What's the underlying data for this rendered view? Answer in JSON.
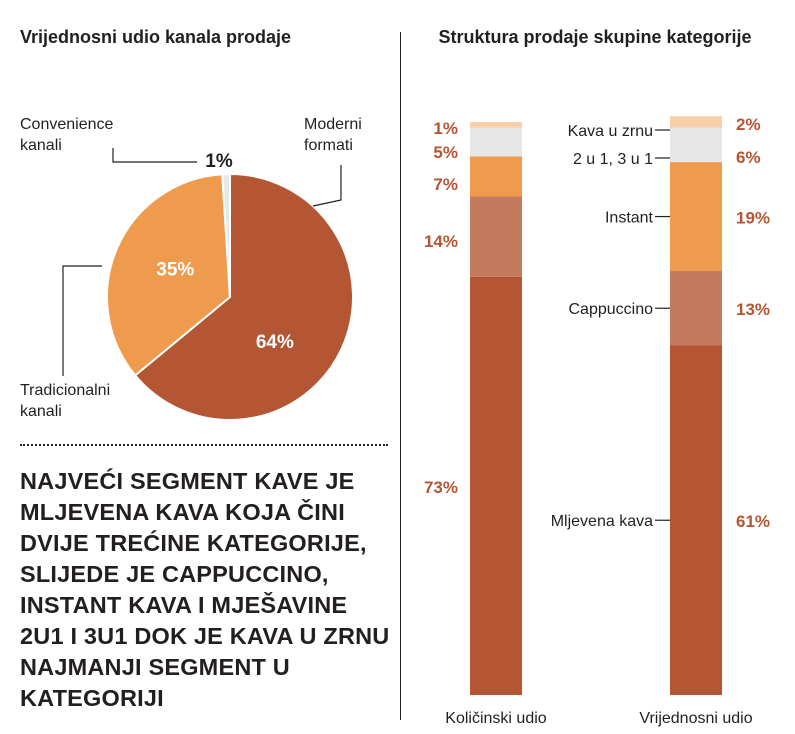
{
  "colors": {
    "mljevena": "#b45533",
    "cappuccino": "#c67a5d",
    "instant": "#ef9b4d",
    "mix": "#e7e7e8",
    "zrno": "#f8cfa8",
    "value_label": "#b45533",
    "text": "#231f20"
  },
  "left_title": "Vrijednosni udio kanala prodaje",
  "right_title": "Struktura prodaje skupine kategorije",
  "headline": "NAJVEĆI SEGMENT KAVE JE MLJEVENA KAVA KOJA ČINI DVIJE TREĆINE KATEGORIJE, SLIJEDE JE CAPPUCCINO, INSTANT KAVA I MJEŠAVINE 2U1 I 3U1 DOK JE KAVA U ZRNU NAJMANJI SEGMENT U KATEGORIJI",
  "chart_data": [
    {
      "type": "pie",
      "title": "Vrijednosni udio kanala prodaje",
      "slices": [
        {
          "label": "Moderni formati",
          "value": 64,
          "value_label": "64%",
          "label_lines": [
            "Moderni",
            "formati"
          ]
        },
        {
          "label": "Tradicionalni kanali",
          "value": 35,
          "value_label": "35%",
          "label_lines": [
            "Tradicionalni",
            "kanali"
          ]
        },
        {
          "label": "Convenience kanali",
          "value": 1,
          "value_label": "1%",
          "label_lines": [
            "Convenience",
            "kanali"
          ]
        }
      ]
    },
    {
      "type": "bar",
      "stacked": true,
      "title": "Struktura prodaje skupine kategorije",
      "categories": [
        "Količinski udio",
        "Vrijednosni udio"
      ],
      "series": [
        {
          "name": "Mljevena kava",
          "key": "mljevena",
          "values": [
            73,
            61
          ],
          "value_labels": [
            "73%",
            "61%"
          ]
        },
        {
          "name": "Cappuccino",
          "key": "cappuccino",
          "values": [
            14,
            13
          ],
          "value_labels": [
            "14%",
            "13%"
          ]
        },
        {
          "name": "Instant",
          "key": "instant",
          "values": [
            7,
            19
          ],
          "value_labels": [
            "7%",
            "19%"
          ]
        },
        {
          "name": "2 u 1, 3 u 1",
          "key": "mix",
          "values": [
            5,
            6
          ],
          "value_labels": [
            "5%",
            "6%"
          ]
        },
        {
          "name": "Kava u zrnu",
          "key": "zrno",
          "values": [
            1,
            2
          ],
          "value_labels": [
            "1%",
            "2%"
          ]
        }
      ],
      "ylim": [
        0,
        100
      ]
    }
  ]
}
